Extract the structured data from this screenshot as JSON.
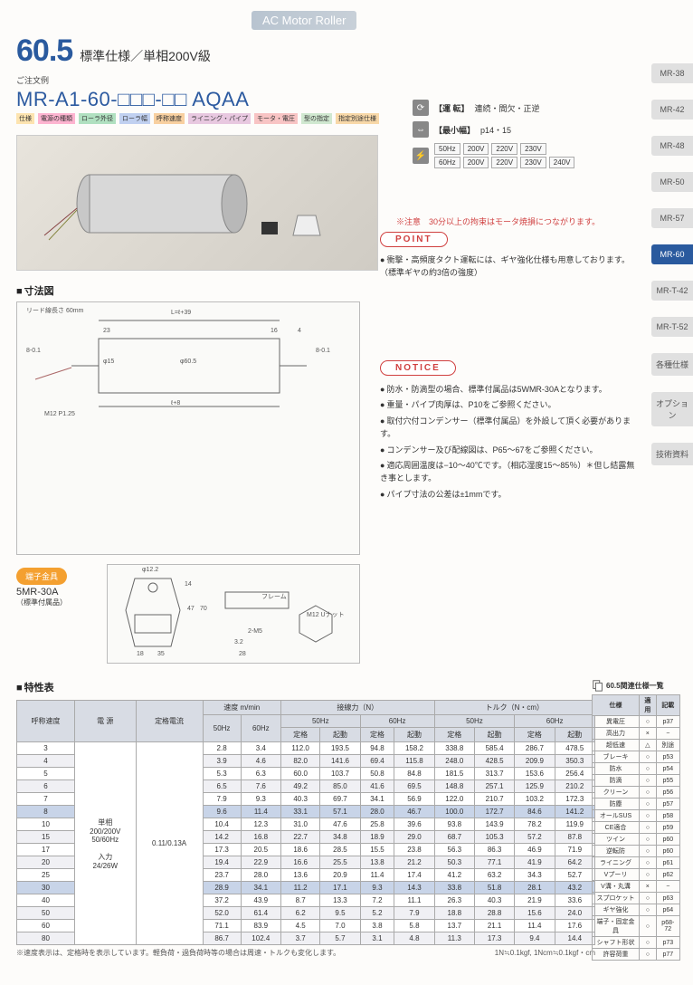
{
  "header_band": "AC Motor Roller",
  "title_num": "60.5",
  "title_sub": "標準仕様／単相200V級",
  "order_label": "ご注文例",
  "order_code": "MR-A1-60-□□□-□□ AQAA",
  "code_legend": [
    "仕様",
    "電源の種類",
    "ローラ外径",
    "ローラ幅",
    "呼称速度",
    "ライニング・パイプ",
    "モータ・電圧",
    "型の指定",
    "指定別途仕様"
  ],
  "info": {
    "run_label": "【運 転】",
    "run_val": "連続・間欠・正逆",
    "width_label": "【最小幅】",
    "width_val": "p14・15",
    "freq": {
      "r1": [
        "50Hz",
        "200V",
        "220V",
        "230V"
      ],
      "r2": [
        "60Hz",
        "200V",
        "220V",
        "230V",
        "240V"
      ]
    }
  },
  "caution": "※注意　30分以上の拘束はモータ焼損につながります。",
  "point_label": "POINT",
  "point_items": [
    "衝撃・高頻度タクト運転には、ギヤ強化仕様も用意しております。（標準ギヤの約3倍の強度）"
  ],
  "dim_h": "寸法図",
  "dim_labels": {
    "lead": "リード線長さ 60mm",
    "L": "L=ℓ+39",
    "l": "ℓ+8",
    "d60": "φ60.5",
    "d15": "φ15",
    "d801": "8-0.1",
    "m12": "M12 P1.25",
    "w23": "23",
    "w16": "16",
    "w4": "4"
  },
  "notice_label": "NOTICE",
  "notice_items": [
    "防水・防滴型の場合、標準付属品は5WMR-30Aとなります。",
    "重量・パイプ肉厚は、P10をご参照ください。",
    "取付穴付コンデンサー（標準付属品）を外設して頂く必要があります。",
    "コンデンサー及び配線図は、P65～67をご参照ください。",
    "適応周囲温度は−10～40℃です。（相応湿度15～85％）＊但し結露無き事とします。",
    "パイプ寸法の公差は±1mmです。"
  ],
  "terminal_badge": "端子金具",
  "terminal_code": "5MR-30A",
  "terminal_sub": "（標準付属品）",
  "terminal_labels": {
    "frame": "フレーム",
    "nut": "M12 Uナット",
    "d122": "φ12.2",
    "h47": "47",
    "h70": "70",
    "w18": "18",
    "w35": "35",
    "w28": "28",
    "m5": "2-M5",
    "h14": "14",
    "h32": "3.2"
  },
  "spec_h": "特性表",
  "spec_headers": {
    "h1": "呼称速度",
    "h2": "電 源",
    "h3": "定格電流",
    "h4": "速度 m/min",
    "h5": "接線力（N）",
    "h6": "トルク（N・cm）",
    "sub50": "50Hz",
    "sub60": "60Hz",
    "rated": "定格",
    "start": "起動"
  },
  "power_cell": "単相\n200/200V\n50/60Hz\n\n入力\n24/26W",
  "current_cell": "0.11/0.13A",
  "spec_rows": [
    {
      "sp": "3",
      "v": [
        "2.8",
        "3.4",
        "112.0",
        "193.5",
        "94.8",
        "158.2",
        "338.8",
        "585.4",
        "286.7",
        "478.5"
      ]
    },
    {
      "sp": "4",
      "v": [
        "3.9",
        "4.6",
        "82.0",
        "141.6",
        "69.4",
        "115.8",
        "248.0",
        "428.5",
        "209.9",
        "350.3"
      ]
    },
    {
      "sp": "5",
      "v": [
        "5.3",
        "6.3",
        "60.0",
        "103.7",
        "50.8",
        "84.8",
        "181.5",
        "313.7",
        "153.6",
        "256.4"
      ]
    },
    {
      "sp": "6",
      "v": [
        "6.5",
        "7.6",
        "49.2",
        "85.0",
        "41.6",
        "69.5",
        "148.8",
        "257.1",
        "125.9",
        "210.2"
      ]
    },
    {
      "sp": "7",
      "v": [
        "7.9",
        "9.3",
        "40.3",
        "69.7",
        "34.1",
        "56.9",
        "122.0",
        "210.7",
        "103.2",
        "172.3"
      ]
    },
    {
      "sp": "8",
      "v": [
        "9.6",
        "11.4",
        "33.1",
        "57.1",
        "28.0",
        "46.7",
        "100.0",
        "172.7",
        "84.6",
        "141.2"
      ],
      "hl": true
    },
    {
      "sp": "10",
      "v": [
        "10.4",
        "12.3",
        "31.0",
        "47.6",
        "25.8",
        "39.6",
        "93.8",
        "143.9",
        "78.2",
        "119.9"
      ]
    },
    {
      "sp": "15",
      "v": [
        "14.2",
        "16.8",
        "22.7",
        "34.8",
        "18.9",
        "29.0",
        "68.7",
        "105.3",
        "57.2",
        "87.8"
      ]
    },
    {
      "sp": "17",
      "v": [
        "17.3",
        "20.5",
        "18.6",
        "28.5",
        "15.5",
        "23.8",
        "56.3",
        "86.3",
        "46.9",
        "71.9"
      ]
    },
    {
      "sp": "20",
      "v": [
        "19.4",
        "22.9",
        "16.6",
        "25.5",
        "13.8",
        "21.2",
        "50.3",
        "77.1",
        "41.9",
        "64.2"
      ]
    },
    {
      "sp": "25",
      "v": [
        "23.7",
        "28.0",
        "13.6",
        "20.9",
        "11.4",
        "17.4",
        "41.2",
        "63.2",
        "34.3",
        "52.7"
      ]
    },
    {
      "sp": "30",
      "v": [
        "28.9",
        "34.1",
        "11.2",
        "17.1",
        "9.3",
        "14.3",
        "33.8",
        "51.8",
        "28.1",
        "43.2"
      ],
      "hl": true
    },
    {
      "sp": "40",
      "v": [
        "37.2",
        "43.9",
        "8.7",
        "13.3",
        "7.2",
        "11.1",
        "26.3",
        "40.3",
        "21.9",
        "33.6"
      ]
    },
    {
      "sp": "50",
      "v": [
        "52.0",
        "61.4",
        "6.2",
        "9.5",
        "5.2",
        "7.9",
        "18.8",
        "28.8",
        "15.6",
        "24.0"
      ]
    },
    {
      "sp": "60",
      "v": [
        "71.1",
        "83.9",
        "4.5",
        "7.0",
        "3.8",
        "5.8",
        "13.7",
        "21.1",
        "11.4",
        "17.6"
      ]
    },
    {
      "sp": "80",
      "v": [
        "86.7",
        "102.4",
        "3.7",
        "5.7",
        "3.1",
        "4.8",
        "11.3",
        "17.3",
        "9.4",
        "14.4"
      ]
    }
  ],
  "foot1": "※速度表示は、定格時を表示しています。軽負荷・過負荷時等の場合は周速・トルクも変化します。",
  "foot2": "1N≒0.1kgf, 1Ncm≒0.1kgf・cm",
  "side_tabs": [
    {
      "label": "MR-38"
    },
    {
      "label": "MR-42"
    },
    {
      "label": "MR-48"
    },
    {
      "label": "MR-50"
    },
    {
      "label": "MR-57"
    },
    {
      "label": "MR-60",
      "active": true
    },
    {
      "label": "MR-T-42"
    },
    {
      "label": "MR-T-52"
    },
    {
      "label": "各種仕様"
    },
    {
      "label": "オプション"
    },
    {
      "label": "技術資料"
    }
  ],
  "related_h": "60.5関連仕様一覧",
  "related_cols": [
    "仕様",
    "適用",
    "記載"
  ],
  "related_rows": [
    [
      "異電圧",
      "○",
      "p37"
    ],
    [
      "高出力",
      "×",
      "−"
    ],
    [
      "超低速",
      "△",
      "別途"
    ],
    [
      "ブレーキ",
      "○",
      "p53"
    ],
    [
      "防水",
      "○",
      "p54"
    ],
    [
      "防滴",
      "○",
      "p55"
    ],
    [
      "クリーン",
      "○",
      "p56"
    ],
    [
      "防塵",
      "○",
      "p57"
    ],
    [
      "オールSUS",
      "○",
      "p58"
    ],
    [
      "CE適合",
      "○",
      "p59"
    ],
    [
      "ツイン",
      "○",
      "p60"
    ],
    [
      "逆転防",
      "○",
      "p60"
    ],
    [
      "ライニング",
      "○",
      "p61"
    ],
    [
      "Vプーリ",
      "○",
      "p62"
    ],
    [
      "V溝・丸溝",
      "×",
      "−"
    ],
    [
      "スプロケット",
      "○",
      "p63"
    ],
    [
      "ギヤ強化",
      "○",
      "p64"
    ],
    [
      "端子・固定金具",
      "○",
      "p68-72"
    ],
    [
      "シャフト形状",
      "○",
      "p73"
    ],
    [
      "許容荷重",
      "○",
      "p77"
    ]
  ]
}
